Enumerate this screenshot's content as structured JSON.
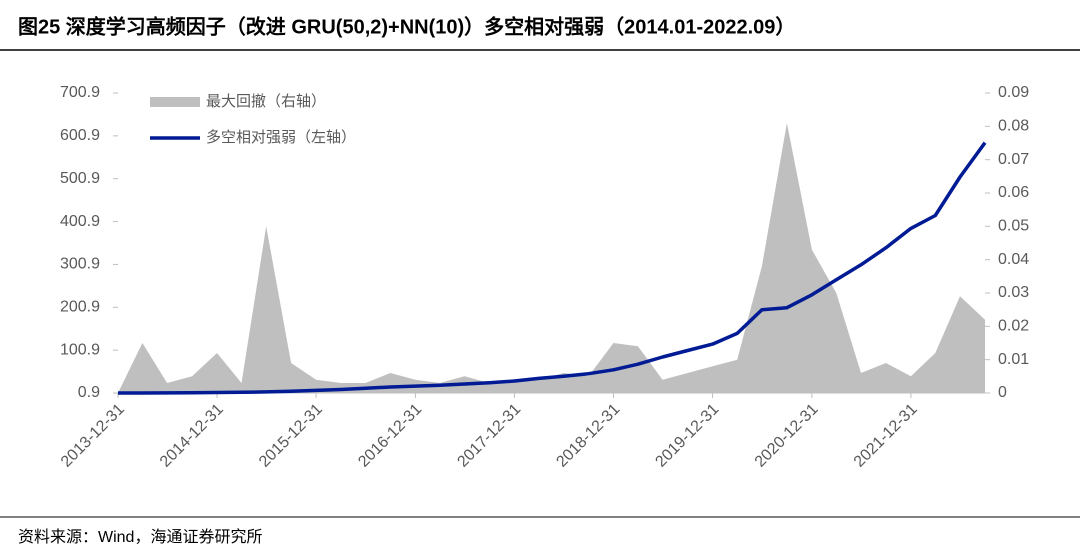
{
  "chart_data": {
    "type": "line",
    "title": "图25 深度学习高频因子（改进 GRU(50,2)+NN(10)）多空相对强弱（2014.01-2022.09）",
    "source": "资料来源：Wind，海通证券研究所",
    "x": [
      "2013-12-31",
      "2014-03-31",
      "2014-06-30",
      "2014-09-30",
      "2014-12-31",
      "2015-03-31",
      "2015-06-30",
      "2015-09-30",
      "2015-12-31",
      "2016-03-31",
      "2016-06-30",
      "2016-09-30",
      "2016-12-31",
      "2017-03-31",
      "2017-06-30",
      "2017-09-30",
      "2017-12-31",
      "2018-03-31",
      "2018-06-30",
      "2018-09-30",
      "2018-12-31",
      "2019-03-31",
      "2019-06-30",
      "2019-09-30",
      "2019-12-31",
      "2020-03-31",
      "2020-06-30",
      "2020-09-30",
      "2020-12-31",
      "2021-03-31",
      "2021-06-30",
      "2021-09-30",
      "2021-12-31",
      "2022-03-31",
      "2022-06-30",
      "2022-09-30"
    ],
    "series": [
      {
        "name": "最大回撤（右轴）",
        "color": "#bfbfbf",
        "kind": "area",
        "axis": "y2",
        "values": [
          0,
          0.015,
          0.003,
          0.005,
          0.012,
          0.003,
          0.05,
          0.009,
          0.004,
          0.003,
          0.003,
          0.006,
          0.004,
          0.003,
          0.005,
          0.003,
          0.004,
          0.004,
          0.006,
          0.005,
          0.015,
          0.014,
          0.004,
          0.006,
          0.008,
          0.01,
          0.038,
          0.081,
          0.043,
          0.03,
          0.006,
          0.009,
          0.005,
          0.012,
          0.029,
          0.022
        ]
      },
      {
        "name": "多空相对强弱（左轴）",
        "color": "#001b94",
        "kind": "line",
        "values": [
          0.9,
          1,
          1.2,
          1.5,
          2,
          2.5,
          3.5,
          5,
          7,
          9,
          12,
          15,
          17,
          19,
          22,
          25,
          29,
          35,
          40,
          46,
          55,
          68,
          85,
          100,
          115,
          140,
          195,
          200,
          230,
          265,
          300,
          340,
          385,
          415,
          505,
          585
        ]
      }
    ],
    "xlim": [
      "2013-12-31",
      "2022-09-30"
    ],
    "xticks": [
      "2013-12-31",
      "2014-12-31",
      "2015-12-31",
      "2016-12-31",
      "2017-12-31",
      "2018-12-31",
      "2019-12-31",
      "2020-12-31",
      "2021-12-31"
    ],
    "ylim": [
      0.9,
      700.9
    ],
    "yticks": [
      0.9,
      100.9,
      200.9,
      300.9,
      400.9,
      500.9,
      600.9,
      700.9
    ],
    "y2lim": [
      0,
      0.09
    ],
    "y2ticks": [
      0,
      0.01,
      0.02,
      0.03,
      0.04,
      0.05,
      0.06,
      0.07,
      0.08,
      0.09
    ],
    "legend": "top-left"
  }
}
